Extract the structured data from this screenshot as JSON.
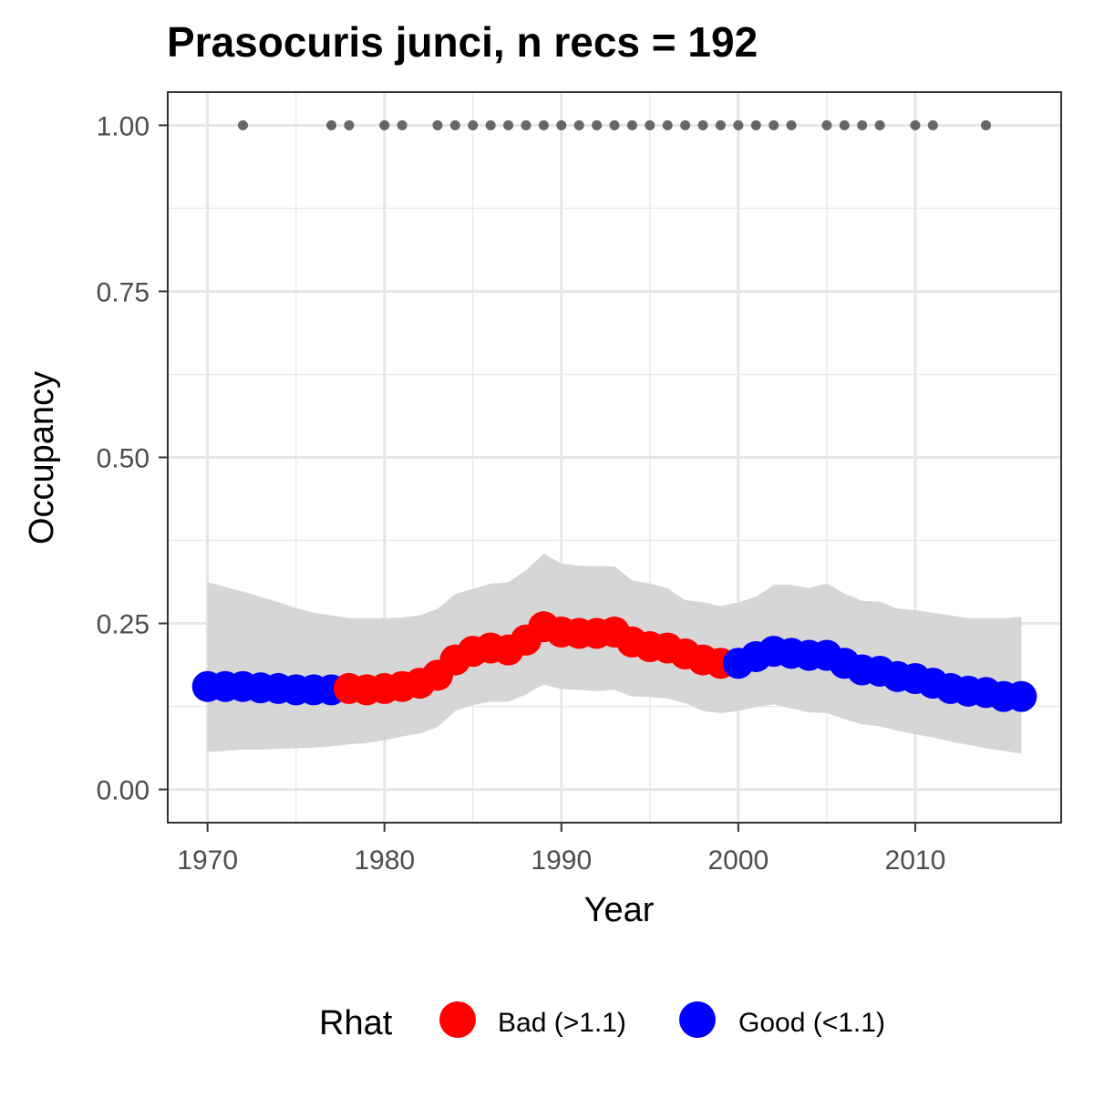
{
  "chart_data": {
    "type": "scatter",
    "title": "Prasocuris junci, n recs = 192",
    "xlabel": "Year",
    "ylabel": "Occupancy",
    "xlim": [
      1967.75,
      2018.25
    ],
    "ylim": [
      -0.05,
      1.05
    ],
    "x_ticks": [
      1970,
      1980,
      1990,
      2000,
      2010
    ],
    "x_tick_labels": [
      "1970",
      "1980",
      "1990",
      "2000",
      "2010"
    ],
    "y_ticks": [
      0,
      0.25,
      0.5,
      0.75,
      1
    ],
    "y_tick_labels": [
      "0.00",
      "0.25",
      "0.50",
      "0.75",
      "1.00"
    ],
    "grid": true,
    "legend": {
      "title": "Rhat",
      "position": "bottom",
      "entries": [
        {
          "label": "Bad (>1.1)",
          "color": "#ff0000"
        },
        {
          "label": "Good (<1.1)",
          "color": "#0000ff"
        }
      ]
    },
    "colors": {
      "bad": "#ff0000",
      "good": "#0000ff",
      "ribbon": "#d4d4d4",
      "records": "#666666"
    },
    "years": [
      1970,
      1971,
      1972,
      1973,
      1974,
      1975,
      1976,
      1977,
      1978,
      1979,
      1980,
      1981,
      1982,
      1983,
      1984,
      1985,
      1986,
      1987,
      1988,
      1989,
      1990,
      1991,
      1992,
      1993,
      1994,
      1995,
      1996,
      1997,
      1998,
      1999,
      2000,
      2001,
      2002,
      2003,
      2004,
      2005,
      2006,
      2007,
      2008,
      2009,
      2010,
      2011,
      2012,
      2013,
      2014,
      2015,
      2016
    ],
    "occupancy": [
      0.155,
      0.155,
      0.155,
      0.153,
      0.152,
      0.15,
      0.15,
      0.15,
      0.152,
      0.15,
      0.152,
      0.155,
      0.16,
      0.172,
      0.195,
      0.208,
      0.213,
      0.21,
      0.225,
      0.245,
      0.237,
      0.235,
      0.235,
      0.237,
      0.222,
      0.215,
      0.213,
      0.204,
      0.195,
      0.19,
      0.19,
      0.2,
      0.208,
      0.205,
      0.202,
      0.202,
      0.19,
      0.18,
      0.178,
      0.17,
      0.167,
      0.16,
      0.152,
      0.148,
      0.146,
      0.14,
      0.14
    ],
    "rhat_status": [
      "good",
      "good",
      "good",
      "good",
      "good",
      "good",
      "good",
      "good",
      "bad",
      "bad",
      "bad",
      "bad",
      "bad",
      "bad",
      "bad",
      "bad",
      "bad",
      "bad",
      "bad",
      "bad",
      "bad",
      "bad",
      "bad",
      "bad",
      "bad",
      "bad",
      "bad",
      "bad",
      "bad",
      "bad",
      "good",
      "good",
      "good",
      "good",
      "good",
      "good",
      "good",
      "good",
      "good",
      "good",
      "good",
      "good",
      "good",
      "good",
      "good",
      "good",
      "good"
    ],
    "lower_ci": [
      0.057,
      0.058,
      0.06,
      0.06,
      0.061,
      0.062,
      0.063,
      0.065,
      0.068,
      0.07,
      0.074,
      0.08,
      0.084,
      0.094,
      0.118,
      0.127,
      0.132,
      0.132,
      0.143,
      0.158,
      0.151,
      0.15,
      0.148,
      0.15,
      0.14,
      0.139,
      0.137,
      0.13,
      0.118,
      0.115,
      0.118,
      0.124,
      0.128,
      0.122,
      0.116,
      0.115,
      0.106,
      0.098,
      0.095,
      0.088,
      0.083,
      0.078,
      0.072,
      0.067,
      0.062,
      0.058,
      0.054
    ],
    "upper_ci": [
      0.312,
      0.305,
      0.298,
      0.29,
      0.282,
      0.273,
      0.266,
      0.262,
      0.258,
      0.258,
      0.258,
      0.259,
      0.262,
      0.272,
      0.294,
      0.302,
      0.31,
      0.312,
      0.33,
      0.355,
      0.34,
      0.337,
      0.336,
      0.336,
      0.315,
      0.31,
      0.303,
      0.285,
      0.282,
      0.276,
      0.282,
      0.29,
      0.308,
      0.308,
      0.303,
      0.31,
      0.295,
      0.284,
      0.283,
      0.272,
      0.27,
      0.266,
      0.262,
      0.258,
      0.258,
      0.258,
      0.26
    ],
    "record_years": [
      1972,
      1977,
      1978,
      1980,
      1981,
      1983,
      1984,
      1985,
      1986,
      1987,
      1988,
      1989,
      1990,
      1991,
      1992,
      1993,
      1994,
      1995,
      1996,
      1997,
      1998,
      1999,
      2000,
      2001,
      2002,
      2003,
      2005,
      2006,
      2007,
      2008,
      2010,
      2011,
      2014
    ],
    "record_value": 1.0
  }
}
